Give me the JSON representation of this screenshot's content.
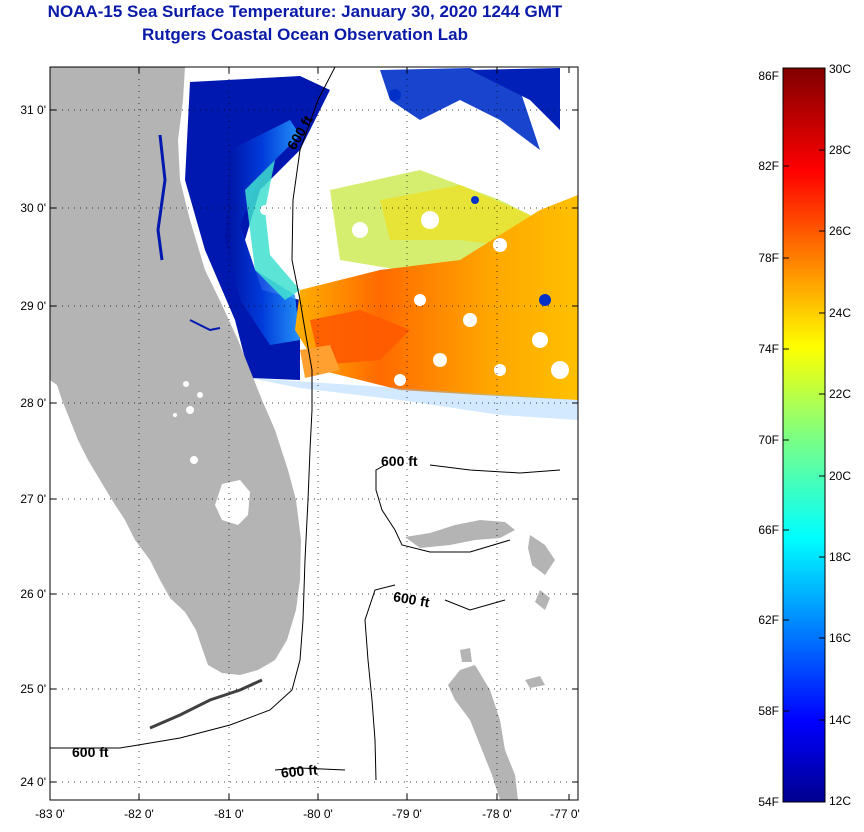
{
  "title": {
    "line1": "NOAA-15 Sea Surface Temperature:  January 30, 2020 1244 GMT",
    "line2": "Rutgers Coastal Ocean Observation Lab"
  },
  "map": {
    "lat_labels": [
      "31 0'",
      "30 0'",
      "29 0'",
      "28 0'",
      "27 0'",
      "26 0'",
      "25 0'",
      "24 0'"
    ],
    "lon_labels": [
      "-83 0'",
      "-82 0'",
      "-81 0'",
      "-80 0'",
      "-79 0'",
      "-78 0'",
      "-77 0'"
    ],
    "contour_labels": [
      "600 ft",
      "600 ft",
      "600 ft",
      "600 ft",
      "600 ft"
    ],
    "colors": {
      "land": "#b4b4b4",
      "ocean_nodata": "#ffffff",
      "border": "#000000"
    }
  },
  "colorbar": {
    "fahrenheit_labels": [
      "86F",
      "82F",
      "78F",
      "74F",
      "70F",
      "66F",
      "62F",
      "58F",
      "54F"
    ],
    "celsius_labels": [
      "30C",
      "28C",
      "26C",
      "24C",
      "22C",
      "20C",
      "18C",
      "16C",
      "14C",
      "12C"
    ],
    "min_c": 12,
    "max_c": 30
  }
}
